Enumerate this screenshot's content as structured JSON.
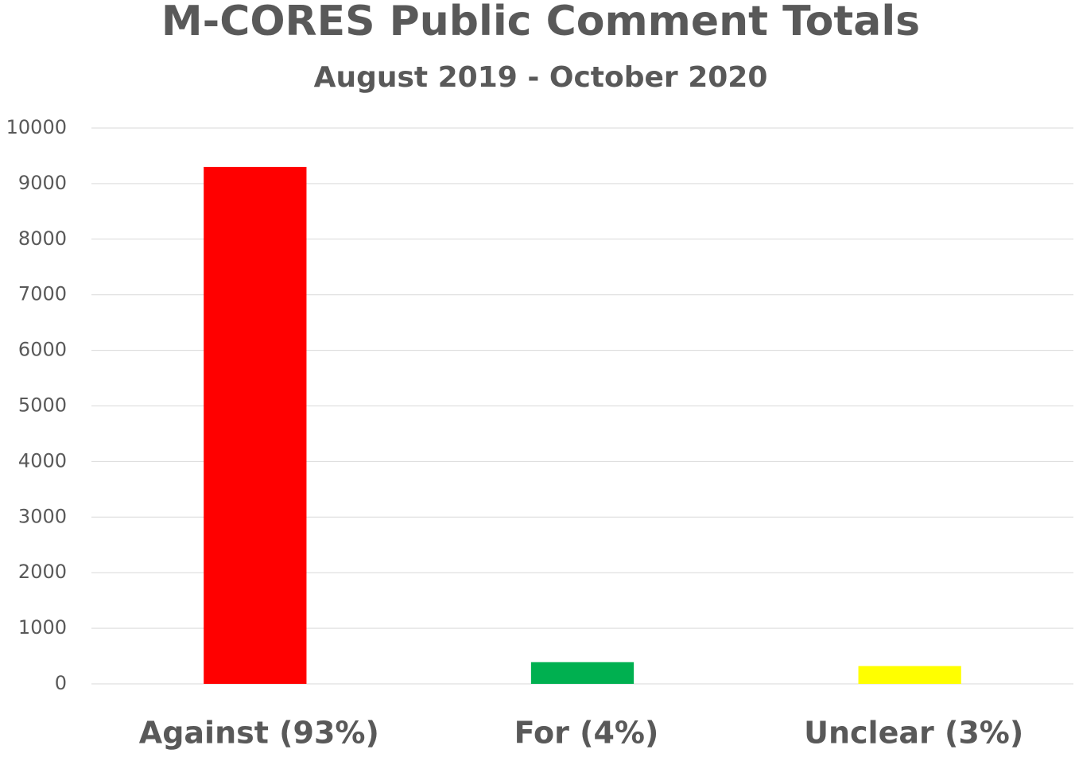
{
  "chart_data": {
    "type": "bar",
    "title": "M-CORES Public Comment Totals",
    "subtitle": "August 2019 - October 2020",
    "categories": [
      "Against (93%)",
      "For (4%)",
      "Unclear (3%)"
    ],
    "values": [
      9300,
      390,
      320
    ],
    "colors": [
      "#ff0000",
      "#00b050",
      "#ffff00"
    ],
    "ylim": [
      0,
      10000
    ],
    "yticks": [
      0,
      1000,
      2000,
      3000,
      4000,
      5000,
      6000,
      7000,
      8000,
      9000,
      10000
    ],
    "grid": true
  }
}
